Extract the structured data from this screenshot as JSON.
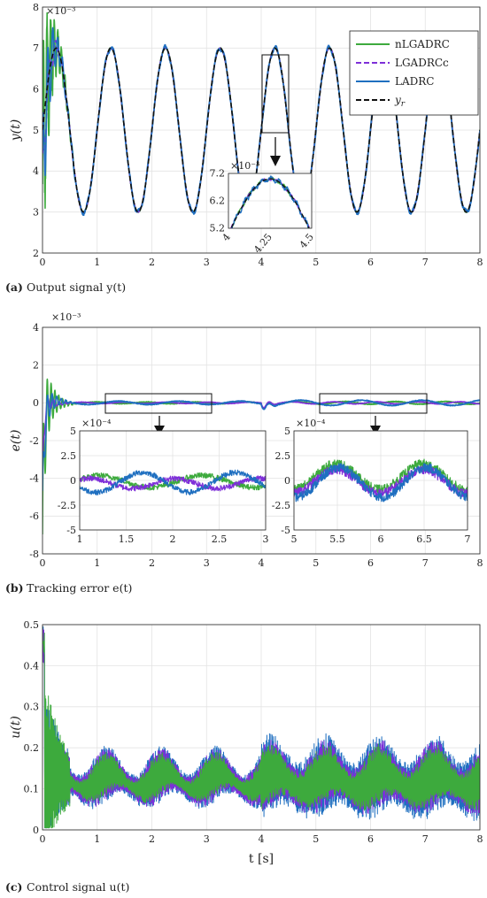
{
  "chart_data": [
    {
      "type": "line",
      "panel": "a",
      "caption": "Output signal y(t)",
      "caption_prefix": "(a)",
      "ylabel": "y(t)",
      "xlabel": "",
      "xlim": [
        0,
        8
      ],
      "ylim": [
        2,
        8
      ],
      "y_exponent": "×10⁻³",
      "x_ticks": [
        "0",
        "1",
        "2",
        "3",
        "4",
        "5",
        "6",
        "7",
        "8"
      ],
      "y_ticks": [
        "2",
        "3",
        "4",
        "5",
        "6",
        "7",
        "8"
      ],
      "grid": true,
      "legend_position": "top-right",
      "legend": [
        "nLGADRC",
        "LGADRCc",
        "LADRC",
        "y_r"
      ],
      "series": [
        {
          "name": "nLGADRC",
          "color": "#3daa3d",
          "style": "solid"
        },
        {
          "name": "LGADRCc",
          "color": "#7e2fd8",
          "style": "dashed"
        },
        {
          "name": "LADRC",
          "color": "#1f6fc0",
          "style": "solid"
        },
        {
          "name": "y_r",
          "color": "#111111",
          "style": "dashed"
        }
      ],
      "reference": {
        "offset": 5,
        "amplitude": 2,
        "period": 1,
        "phase_time": 0.25
      },
      "inset": {
        "xlim": [
          4,
          4.5
        ],
        "ylim": [
          5.2,
          7.2
        ],
        "x_ticks": [
          "4",
          "4.25",
          "4.5"
        ],
        "y_ticks": [
          "5.2",
          "6.2",
          "7.2"
        ],
        "y_exponent": "×10⁻³"
      }
    },
    {
      "type": "line",
      "panel": "b",
      "caption": "Tracking error e(t)",
      "caption_prefix": "(b)",
      "ylabel": "e(t)",
      "xlabel": "",
      "xlim": [
        0,
        8
      ],
      "ylim": [
        -8,
        4
      ],
      "y_exponent": "×10⁻³",
      "x_ticks": [
        "0",
        "1",
        "2",
        "3",
        "4",
        "5",
        "6",
        "7",
        "8"
      ],
      "y_ticks": [
        "-8",
        "-6",
        "-4",
        "-2",
        "0",
        "2",
        "4"
      ],
      "grid": true,
      "insets": [
        {
          "xlim": [
            1,
            3
          ],
          "ylim": [
            -5,
            5
          ],
          "x_ticks": [
            "1",
            "1.5",
            "2",
            "2.5",
            "3"
          ],
          "y_ticks": [
            "-5",
            "-2.5",
            "0",
            "2.5",
            "5"
          ],
          "y_exponent": "×10⁻⁴"
        },
        {
          "xlim": [
            5,
            7
          ],
          "ylim": [
            -5,
            5
          ],
          "x_ticks": [
            "5",
            "5.5",
            "6",
            "6.5",
            "7"
          ],
          "y_ticks": [
            "-5",
            "-2.5",
            "0",
            "2.5",
            "5"
          ],
          "y_exponent": "×10⁻⁴"
        }
      ]
    },
    {
      "type": "line",
      "panel": "c",
      "caption": "Control signal u(t)",
      "caption_prefix": "(c)",
      "ylabel": "u(t)",
      "xlabel": "t [s]",
      "xlim": [
        0,
        8
      ],
      "ylim": [
        0,
        0.5
      ],
      "x_ticks": [
        "0",
        "1",
        "2",
        "3",
        "4",
        "5",
        "6",
        "7",
        "8"
      ],
      "y_ticks": [
        "0",
        "0.1",
        "0.2",
        "0.3",
        "0.4",
        "0.5"
      ],
      "grid": true
    }
  ]
}
